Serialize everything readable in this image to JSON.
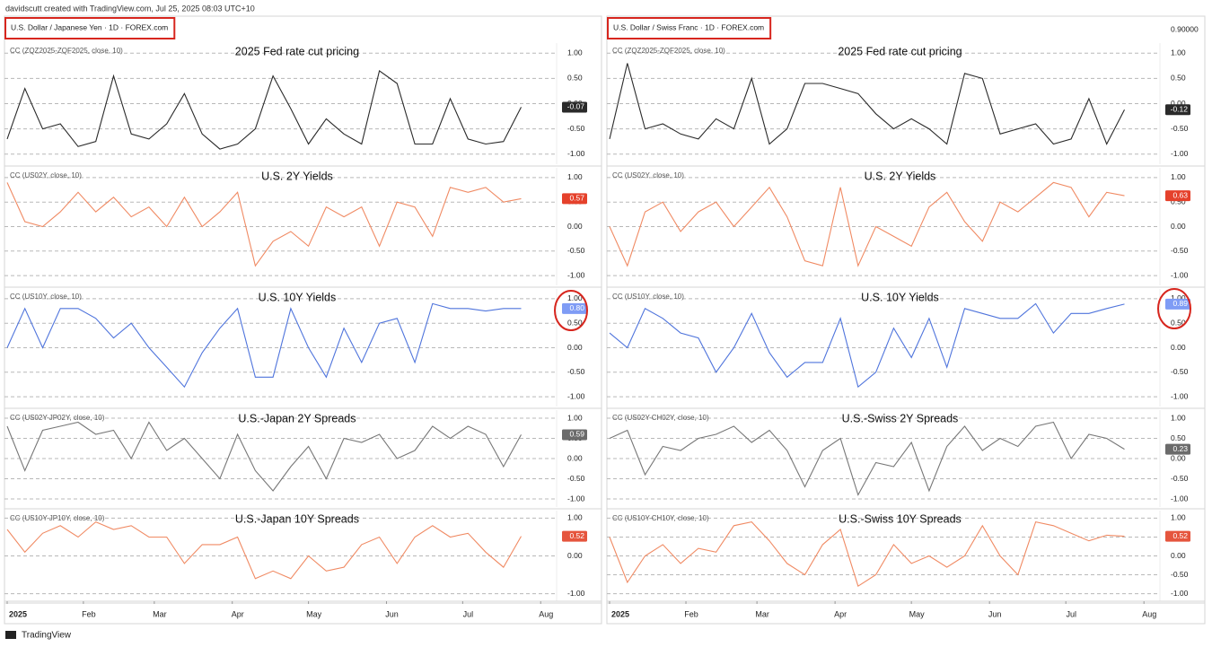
{
  "header": "davidscutt created with TradingView.com, Jul 25, 2025 08:03 UTC+10",
  "footer": "TradingView",
  "chart_data": [
    {
      "symbol": "U.S. Dollar / Japanese Yen · 1D · FOREX.com",
      "xlim": [
        0,
        31
      ],
      "xticks": [
        {
          "value": 0,
          "label": "2025"
        },
        {
          "value": 4.3,
          "label": "Feb"
        },
        {
          "value": 8.3,
          "label": "Mar"
        },
        {
          "value": 12.7,
          "label": "Apr"
        },
        {
          "value": 17,
          "label": "May"
        },
        {
          "value": 21.4,
          "label": "Jun"
        },
        {
          "value": 25.7,
          "label": "Jul"
        },
        {
          "value": 30.1,
          "label": "Aug"
        }
      ],
      "panes": [
        {
          "type": "line",
          "title": "2025 Fed rate cut pricing",
          "indicator": "CC (ZQZ2025-ZQF2025, close, 10)",
          "color": "#2a2a2a",
          "badge_color": "#2a2a2a",
          "values": [
            -0.7,
            0.3,
            -0.5,
            -0.4,
            -0.85,
            -0.75,
            0.55,
            -0.6,
            -0.7,
            -0.4,
            0.2,
            -0.6,
            -0.9,
            -0.8,
            -0.5,
            0.55,
            -0.1,
            -0.8,
            -0.3,
            -0.6,
            -0.8,
            0.65,
            0.4,
            -0.8,
            -0.8,
            0.1,
            -0.7,
            -0.8,
            -0.75,
            -0.07
          ],
          "last": {
            "value": -0.07,
            "label": "-0.07"
          },
          "ylim": [
            -1.2,
            1.2
          ],
          "yticks": [
            {
              "value": 1,
              "label": "1.00"
            },
            {
              "value": 0.5,
              "label": "0.50"
            },
            {
              "value": 0,
              "label": "0.00"
            },
            {
              "value": -0.5,
              "label": "-0.50"
            },
            {
              "value": -1,
              "label": "-1.00"
            }
          ]
        },
        {
          "type": "line",
          "title": "U.S. 2Y Yields",
          "indicator": "CC (US02Y, close, 10)",
          "color": "#f08a63",
          "badge_color": "#e5412b",
          "values": [
            0.9,
            0.1,
            0.0,
            0.3,
            0.7,
            0.3,
            0.6,
            0.2,
            0.4,
            0.0,
            0.6,
            0.0,
            0.3,
            0.7,
            -0.8,
            -0.3,
            -0.1,
            -0.4,
            0.4,
            0.2,
            0.4,
            -0.4,
            0.5,
            0.4,
            -0.2,
            0.8,
            0.7,
            0.8,
            0.5,
            0.57
          ],
          "last": {
            "value": 0.57,
            "label": "0.57"
          },
          "ylim": [
            -1.2,
            1.2
          ],
          "yticks": [
            {
              "value": 1,
              "label": "1.00"
            },
            {
              "value": 0.5,
              "label": "0.50"
            },
            {
              "value": 0,
              "label": "0.00"
            },
            {
              "value": -0.5,
              "label": "-0.50"
            },
            {
              "value": -1,
              "label": "-1.00"
            }
          ]
        },
        {
          "type": "line",
          "title": "U.S. 10Y Yields",
          "indicator": "CC (US10Y, close, 10)",
          "color": "#4f74dc",
          "badge_color": "#7f9cf5",
          "values": [
            0.0,
            0.8,
            0.0,
            0.8,
            0.8,
            0.6,
            0.2,
            0.5,
            0.0,
            -0.4,
            -0.8,
            -0.1,
            0.4,
            0.8,
            -0.6,
            -0.6,
            0.8,
            0.0,
            -0.6,
            0.4,
            -0.3,
            0.5,
            0.6,
            -0.3,
            0.9,
            0.8,
            0.8,
            0.75,
            0.8,
            0.8
          ],
          "last": {
            "value": 0.8,
            "label": "0.80"
          },
          "ylim": [
            -1.2,
            1.2
          ],
          "yticks": [
            {
              "value": 1,
              "label": "1.00"
            },
            {
              "value": 0.5,
              "label": "0.50"
            },
            {
              "value": 0,
              "label": "0.00"
            },
            {
              "value": -0.5,
              "label": "-0.50"
            },
            {
              "value": -1,
              "label": "-1.00"
            }
          ]
        },
        {
          "type": "line",
          "title": "U.S.-Japan 2Y Spreads",
          "indicator": "CC (US02Y-JP02Y, close, 10)",
          "color": "#777777",
          "badge_color": "#6b6b6b",
          "values": [
            0.8,
            -0.3,
            0.7,
            0.8,
            0.9,
            0.6,
            0.7,
            0.0,
            0.9,
            0.2,
            0.5,
            0.0,
            -0.5,
            0.6,
            -0.3,
            -0.8,
            -0.2,
            0.3,
            -0.5,
            0.5,
            0.4,
            0.6,
            0.0,
            0.2,
            0.8,
            0.5,
            0.8,
            0.6,
            -0.2,
            0.59
          ],
          "last": {
            "value": 0.59,
            "label": "0.59"
          },
          "ylim": [
            -1.2,
            1.2
          ],
          "yticks": [
            {
              "value": 1,
              "label": "1.00"
            },
            {
              "value": 0.5,
              "label": "0.50"
            },
            {
              "value": 0,
              "label": "0.00"
            },
            {
              "value": -0.5,
              "label": "-0.50"
            },
            {
              "value": -1,
              "label": "-1.00"
            }
          ]
        },
        {
          "type": "line",
          "title": "U.S.-Japan 10Y Spreads",
          "indicator": "CC (US10Y-JP10Y, close, 10)",
          "color": "#f08a63",
          "badge_color": "#e5553d",
          "values": [
            0.7,
            0.1,
            0.6,
            0.8,
            0.5,
            0.9,
            0.7,
            0.8,
            0.5,
            0.5,
            -0.2,
            0.3,
            0.3,
            0.5,
            -0.6,
            -0.4,
            -0.6,
            0.0,
            -0.4,
            -0.3,
            0.3,
            0.5,
            -0.2,
            0.5,
            0.8,
            0.5,
            0.6,
            0.1,
            -0.3,
            0.52
          ],
          "last": {
            "value": 0.52,
            "label": "0.52"
          },
          "ylim": [
            -1.2,
            1.2
          ],
          "yticks": [
            {
              "value": 1,
              "label": "1.00"
            },
            {
              "value": 0,
              "label": "0.00"
            },
            {
              "value": -1,
              "label": "-1.00"
            }
          ]
        }
      ]
    },
    {
      "symbol": "U.S. Dollar / Swiss Franc · 1D · FOREX.com",
      "price_label": "0.90000",
      "xlim": [
        0,
        31
      ],
      "xticks": [
        {
          "value": 0,
          "label": "2025"
        },
        {
          "value": 4.3,
          "label": "Feb"
        },
        {
          "value": 8.3,
          "label": "Mar"
        },
        {
          "value": 12.7,
          "label": "Apr"
        },
        {
          "value": 17,
          "label": "May"
        },
        {
          "value": 21.4,
          "label": "Jun"
        },
        {
          "value": 25.7,
          "label": "Jul"
        },
        {
          "value": 30.1,
          "label": "Aug"
        }
      ],
      "panes": [
        {
          "type": "line",
          "title": "2025 Fed rate cut pricing",
          "indicator": "CC (ZQZ2025-ZQF2025, close, 10)",
          "color": "#2a2a2a",
          "badge_color": "#2a2a2a",
          "values": [
            -0.7,
            0.8,
            -0.5,
            -0.4,
            -0.6,
            -0.7,
            -0.3,
            -0.5,
            0.5,
            -0.8,
            -0.5,
            0.4,
            0.4,
            0.3,
            0.2,
            -0.2,
            -0.5,
            -0.3,
            -0.5,
            -0.8,
            0.6,
            0.5,
            -0.6,
            -0.5,
            -0.4,
            -0.8,
            -0.7,
            0.1,
            -0.8,
            -0.12
          ],
          "last": {
            "value": -0.12,
            "label": "-0.12"
          },
          "ylim": [
            -1.2,
            1.2
          ],
          "yticks": [
            {
              "value": 1,
              "label": "1.00"
            },
            {
              "value": 0.5,
              "label": "0.50"
            },
            {
              "value": 0,
              "label": "0.00"
            },
            {
              "value": -0.5,
              "label": "-0.50"
            },
            {
              "value": -1,
              "label": "-1.00"
            }
          ]
        },
        {
          "type": "line",
          "title": "U.S. 2Y Yields",
          "indicator": "CC (US02Y, close, 10)",
          "color": "#f08a63",
          "badge_color": "#e5412b",
          "values": [
            0.0,
            -0.8,
            0.3,
            0.5,
            -0.1,
            0.3,
            0.5,
            0.0,
            0.4,
            0.8,
            0.2,
            -0.7,
            -0.8,
            0.8,
            -0.8,
            0.0,
            -0.2,
            -0.4,
            0.4,
            0.7,
            0.1,
            -0.3,
            0.5,
            0.3,
            0.6,
            0.9,
            0.8,
            0.2,
            0.7,
            0.63
          ],
          "last": {
            "value": 0.63,
            "label": "0.63"
          },
          "ylim": [
            -1.2,
            1.2
          ],
          "yticks": [
            {
              "value": 1,
              "label": "1.00"
            },
            {
              "value": 0.5,
              "label": "0.50"
            },
            {
              "value": 0,
              "label": "0.00"
            },
            {
              "value": -0.5,
              "label": "-0.50"
            },
            {
              "value": -1,
              "label": "-1.00"
            }
          ]
        },
        {
          "type": "line",
          "title": "U.S. 10Y Yields",
          "indicator": "CC (US10Y, close, 10)",
          "color": "#4f74dc",
          "badge_color": "#7f9cf5",
          "values": [
            0.3,
            0.0,
            0.8,
            0.6,
            0.3,
            0.2,
            -0.5,
            0.0,
            0.7,
            -0.1,
            -0.6,
            -0.3,
            -0.3,
            0.6,
            -0.8,
            -0.5,
            0.4,
            -0.2,
            0.6,
            -0.4,
            0.8,
            0.7,
            0.6,
            0.6,
            0.9,
            0.3,
            0.7,
            0.7,
            0.8,
            0.89
          ],
          "last": {
            "value": 0.89,
            "label": "0.89"
          },
          "ylim": [
            -1.2,
            1.2
          ],
          "yticks": [
            {
              "value": 1,
              "label": "1.00"
            },
            {
              "value": 0.5,
              "label": "0.50"
            },
            {
              "value": 0,
              "label": "0.00"
            },
            {
              "value": -0.5,
              "label": "-0.50"
            },
            {
              "value": -1,
              "label": "-1.00"
            }
          ]
        },
        {
          "type": "line",
          "title": "U.S.-Swiss 2Y Spreads",
          "indicator": "CC (US02Y-CH02Y, close, 10)",
          "color": "#777777",
          "badge_color": "#6b6b6b",
          "values": [
            0.5,
            0.7,
            -0.4,
            0.3,
            0.2,
            0.5,
            0.6,
            0.8,
            0.4,
            0.7,
            0.2,
            -0.7,
            0.2,
            0.5,
            -0.9,
            -0.1,
            -0.2,
            0.4,
            -0.8,
            0.3,
            0.8,
            0.2,
            0.5,
            0.3,
            0.8,
            0.9,
            0.0,
            0.6,
            0.5,
            0.23
          ],
          "last": {
            "value": 0.23,
            "label": "0.23"
          },
          "ylim": [
            -1.2,
            1.2
          ],
          "yticks": [
            {
              "value": 1,
              "label": "1.00"
            },
            {
              "value": 0.5,
              "label": "0.50"
            },
            {
              "value": 0,
              "label": "0.00"
            },
            {
              "value": -0.5,
              "label": "-0.50"
            },
            {
              "value": -1,
              "label": "-1.00"
            }
          ]
        },
        {
          "type": "line",
          "title": "U.S.-Swiss 10Y Spreads",
          "indicator": "CC (US10Y-CH10Y, close, 10)",
          "color": "#f08a63",
          "badge_color": "#e5553d",
          "values": [
            0.5,
            -0.7,
            0.0,
            0.3,
            -0.2,
            0.2,
            0.1,
            0.8,
            0.9,
            0.4,
            -0.2,
            -0.5,
            0.3,
            0.7,
            -0.8,
            -0.5,
            0.3,
            -0.2,
            0.0,
            -0.3,
            0.0,
            0.8,
            0.0,
            -0.5,
            0.9,
            0.8,
            0.6,
            0.4,
            0.55,
            0.52
          ],
          "last": {
            "value": 0.52,
            "label": "0.52"
          },
          "ylim": [
            -1.2,
            1.2
          ],
          "yticks": [
            {
              "value": 1,
              "label": "1.00"
            },
            {
              "value": 0.5,
              "label": "0.50"
            },
            {
              "value": 0,
              "label": "0.00"
            },
            {
              "value": -0.5,
              "label": "-0.50"
            },
            {
              "value": -1,
              "label": "-1.00"
            }
          ]
        }
      ]
    }
  ]
}
